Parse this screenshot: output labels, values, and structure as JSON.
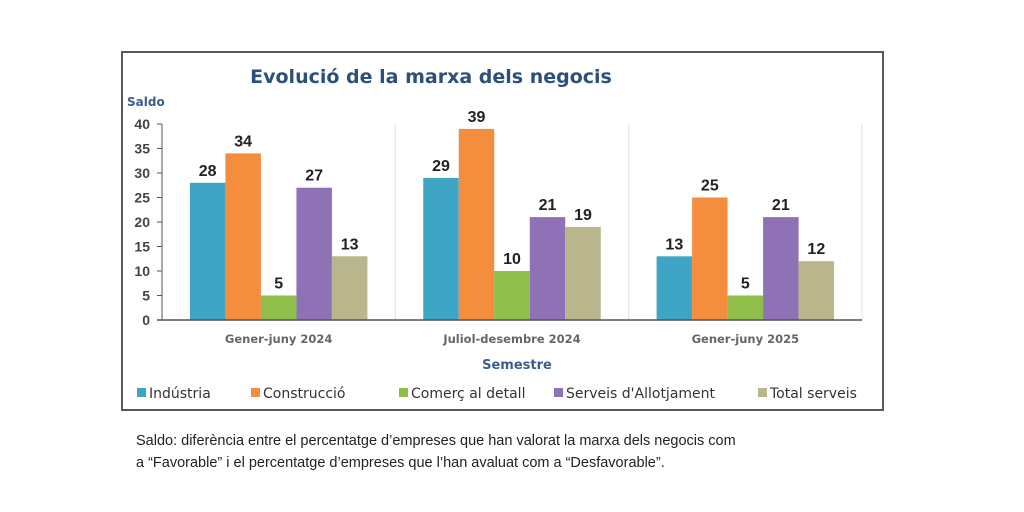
{
  "chart_data": {
    "type": "bar",
    "title": "Evolució de la marxa dels negocis",
    "ylabel": "Saldo",
    "xlabel": "Semestre",
    "ylim": [
      0,
      40
    ],
    "yticks": [
      0,
      5,
      10,
      15,
      20,
      25,
      30,
      35,
      40
    ],
    "grid": false,
    "legend_position": "bottom",
    "categories": [
      "Gener-juny 2024",
      "Juliol-desembre 2024",
      "Gener-juny 2025"
    ],
    "series": [
      {
        "name": "Indústria",
        "color": "#3ea6c4",
        "values": [
          28,
          29,
          13
        ]
      },
      {
        "name": "Construcció",
        "color": "#f58d3e",
        "values": [
          34,
          39,
          25
        ]
      },
      {
        "name": "Comerç al detall",
        "color": "#8fbf4a",
        "values": [
          5,
          10,
          5
        ]
      },
      {
        "name": "Serveis d'Allotjament",
        "color": "#8f72b5",
        "values": [
          27,
          21,
          21
        ]
      },
      {
        "name": "Total serveis",
        "color": "#b9b58d",
        "values": [
          13,
          19,
          12
        ]
      }
    ]
  },
  "footnote": {
    "line1": "Saldo: diferència entre el percentatge d’empreses que han valorat la marxa dels negocis com",
    "line2": "a “Favorable” i el percentatge d’empreses que l’han avaluat com a “Desfavorable”."
  }
}
